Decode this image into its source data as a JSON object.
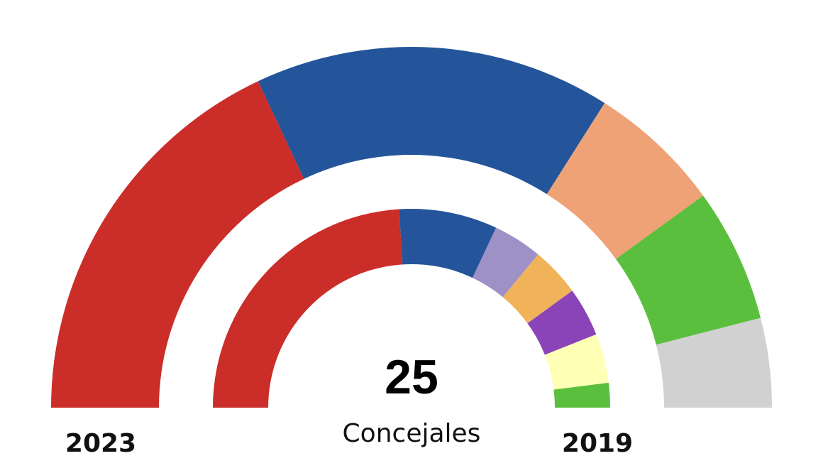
{
  "chart_data": {
    "type": "pie",
    "subtype": "semicircle-parliament",
    "total_seats": 25,
    "center_label": "25",
    "center_sublabel": "Concejales",
    "series": [
      {
        "name": "2023",
        "label": "2023",
        "ring": "outer",
        "slices": [
          {
            "seats": 9,
            "color": "#CB2D28"
          },
          {
            "seats": 8,
            "color": "#24559A"
          },
          {
            "seats": 3,
            "color": "#F0A277"
          },
          {
            "seats": 3,
            "color": "#5BBF3E"
          },
          {
            "seats": 2,
            "color": "#D1D1D1"
          }
        ]
      },
      {
        "name": "2019",
        "label": "2019",
        "ring": "inner",
        "slices": [
          {
            "seats": 12,
            "color": "#CB2D28"
          },
          {
            "seats": 4,
            "color": "#24559A"
          },
          {
            "seats": 2,
            "color": "#9E91C6"
          },
          {
            "seats": 2,
            "color": "#F0B35A"
          },
          {
            "seats": 2,
            "color": "#8A44B8"
          },
          {
            "seats": 2,
            "color": "#FFFFB5"
          },
          {
            "seats": 1,
            "color": "#5BBF3E"
          }
        ]
      }
    ]
  }
}
